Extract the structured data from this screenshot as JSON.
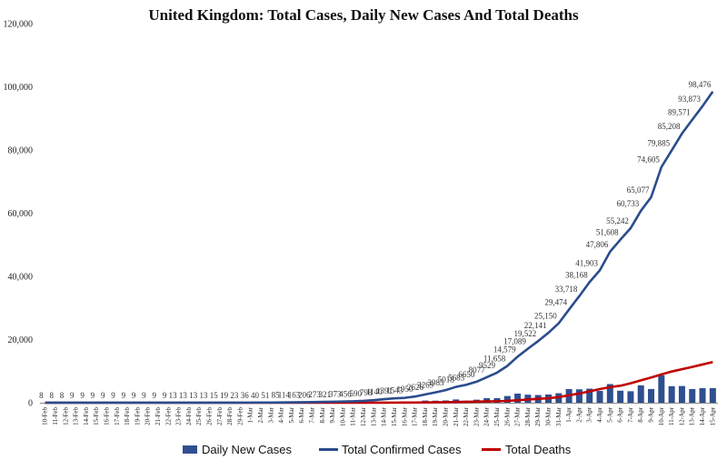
{
  "colors": {
    "bars": "#2F4F8F",
    "cases_line": "#2B4C8C",
    "deaths_line": "#C00000",
    "axis": "#888888"
  },
  "chart_data": {
    "type": "bar",
    "title": "United Kingdom: Total Cases, Daily New Cases And Total Deaths",
    "xlabel": "",
    "ylabel": "",
    "ylim": [
      0,
      120000
    ],
    "yticks": [
      "0",
      "20,000",
      "40,000",
      "60,000",
      "80,000",
      "100,000",
      "120,000"
    ],
    "grid": false,
    "legend": "bottom",
    "categories": [
      "10-Feb",
      "11-Feb",
      "12-Feb",
      "13-Feb",
      "14-Feb",
      "15-Feb",
      "16-Feb",
      "17-Feb",
      "18-Feb",
      "19-Feb",
      "20-Feb",
      "21-Feb",
      "22-Feb",
      "23-Feb",
      "24-Feb",
      "25-Feb",
      "26-Feb",
      "27-Feb",
      "28-Feb",
      "29-Feb",
      "1-Mar",
      "2-Mar",
      "3-Mar",
      "4-Mar",
      "5-Mar",
      "6-Mar",
      "7-Mar",
      "8-Mar",
      "9-Mar",
      "10-Mar",
      "11-Mar",
      "12-Mar",
      "13-Mar",
      "14-Mar",
      "15-Mar",
      "16-Mar",
      "17-Mar",
      "18-Mar",
      "19-Mar",
      "20-Mar",
      "21-Mar",
      "22-Mar",
      "23-Mar",
      "24-Mar",
      "25-Mar",
      "26-Mar",
      "27-Mar",
      "28-Mar",
      "29-Mar",
      "30-Mar",
      "31-Mar",
      "1-Apr",
      "2-Apr",
      "3-Apr",
      "4-Apr",
      "5-Apr",
      "6-Apr",
      "7-Apr",
      "8-Apr",
      "9-Apr",
      "10-Apr",
      "11-Apr",
      "12-Apr",
      "13-Apr",
      "14-Apr",
      "15-Apr"
    ],
    "series": [
      {
        "name": "Daily New Cases",
        "kind": "bar",
        "values": [
          0,
          0,
          0,
          0,
          0,
          0,
          0,
          0,
          0,
          0,
          0,
          0,
          0,
          0,
          0,
          0,
          0,
          0,
          4,
          3,
          13,
          4,
          12,
          34,
          29,
          48,
          43,
          67,
          46,
          50,
          83,
          134,
          208,
          342,
          251,
          152,
          407,
          676,
          643,
          714,
          1035,
          665,
          967,
          1427,
          1452,
          2129,
          2885,
          2546,
          2433,
          2619,
          3009,
          4324,
          4244,
          4450,
          3735,
          5903,
          3802,
          3634,
          5491,
          4344,
          8681,
          5233,
          5288,
          4342,
          4603,
          4605
        ]
      },
      {
        "name": "Total Confirmed Cases",
        "kind": "line",
        "values": [
          8,
          8,
          8,
          9,
          9,
          9,
          9,
          9,
          9,
          9,
          9,
          9,
          9,
          13,
          13,
          13,
          13,
          15,
          19,
          23,
          36,
          40,
          51,
          85,
          114,
          163,
          206,
          273,
          321,
          373,
          456,
          590,
          798,
          1140,
          1391,
          1543,
          1950,
          2626,
          3269,
          3983,
          5018,
          5683,
          6650,
          8077,
          9529,
          11658,
          14579,
          17089,
          19522,
          22141,
          25150,
          29474,
          33718,
          38168,
          41903,
          47806,
          51608,
          55242,
          60733,
          65077,
          74605,
          79885,
          85208,
          89571,
          93873,
          98476
        ]
      },
      {
        "name": "Total Deaths",
        "kind": "line",
        "values": [
          0,
          0,
          0,
          0,
          0,
          0,
          0,
          0,
          0,
          0,
          0,
          0,
          0,
          0,
          0,
          0,
          0,
          0,
          0,
          0,
          0,
          0,
          0,
          0,
          1,
          2,
          2,
          3,
          4,
          6,
          8,
          8,
          10,
          21,
          35,
          55,
          71,
          104,
          144,
          177,
          233,
          281,
          335,
          422,
          465,
          578,
          759,
          1019,
          1228,
          1408,
          1789,
          2352,
          2921,
          3605,
          4313,
          4934,
          5373,
          6159,
          7097,
          7978,
          8958,
          9875,
          10612,
          11329,
          12107,
          12868
        ]
      }
    ],
    "point_labels": [
      "8",
      "8",
      "8",
      "9",
      "9",
      "9",
      "9",
      "9",
      "9",
      "9",
      "9",
      "9",
      "9",
      "13",
      "13",
      "13",
      "13",
      "15",
      "19",
      "23",
      "36",
      "40",
      "51",
      "85",
      "114",
      "163",
      "206",
      "273",
      "321",
      "373",
      "456",
      "590",
      "798",
      "1140",
      "1391",
      "1543",
      "1950",
      "2626",
      "3269",
      "3983",
      "5018",
      "5683",
      "6650",
      "8077",
      "9529",
      "11,658",
      "14,579",
      "17,089",
      "19,522",
      "22,141",
      "25,150",
      "29,474",
      "33,718",
      "38,168",
      "41,903",
      "47,806",
      "51,608",
      "55,242",
      "60,733",
      "65,077",
      "74,605",
      "79,885",
      "85,208",
      "89,571",
      "93,873",
      "98,476"
    ]
  }
}
